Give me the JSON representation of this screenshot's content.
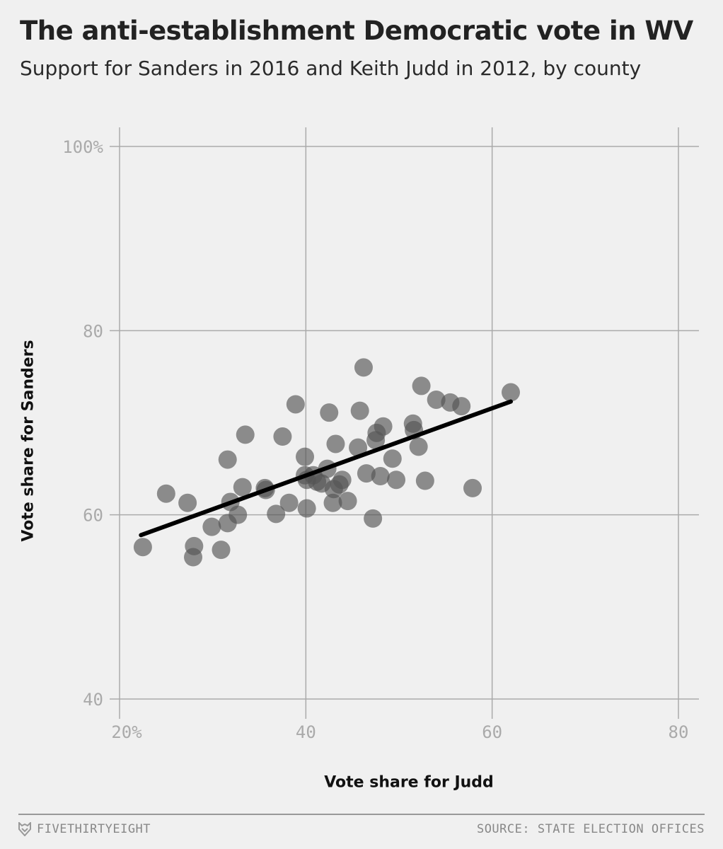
{
  "title": "The anti-establishment Democratic vote in WV",
  "subtitle": "Support for Sanders in 2016 and Keith Judd in 2012, by county",
  "footer": {
    "brand": "FIVETHIRTYEIGHT",
    "brand_icon": "fivethirtyeight-fox-icon",
    "source": "SOURCE: STATE ELECTION OFFICES"
  },
  "chart_data": {
    "type": "scatter",
    "xlabel": "Vote share for Judd",
    "ylabel": "Vote share for Sanders",
    "xlim": [
      20,
      80
    ],
    "ylim": [
      40,
      100
    ],
    "x_ticks": [
      20,
      40,
      60,
      80
    ],
    "x_tick_labels": [
      "20%",
      "40",
      "60",
      "80"
    ],
    "y_ticks": [
      40,
      60,
      80,
      100
    ],
    "y_tick_labels": [
      "40",
      "60",
      "80",
      "100%"
    ],
    "grid": true,
    "point_color": "#555555",
    "point_opacity": 0.65,
    "trend_line": {
      "x": [
        22.3,
        62.0
      ],
      "y": [
        57.8,
        72.3
      ],
      "color": "#000000"
    },
    "points": [
      {
        "x": 22.5,
        "y": 56.5
      },
      {
        "x": 25.0,
        "y": 62.3
      },
      {
        "x": 27.3,
        "y": 61.3
      },
      {
        "x": 28.0,
        "y": 56.6
      },
      {
        "x": 27.9,
        "y": 55.4
      },
      {
        "x": 29.9,
        "y": 58.7
      },
      {
        "x": 30.9,
        "y": 56.2
      },
      {
        "x": 31.6,
        "y": 59.1
      },
      {
        "x": 31.9,
        "y": 61.4
      },
      {
        "x": 31.6,
        "y": 66.0
      },
      {
        "x": 32.7,
        "y": 60.0
      },
      {
        "x": 33.2,
        "y": 63.0
      },
      {
        "x": 33.5,
        "y": 68.7
      },
      {
        "x": 35.6,
        "y": 62.9
      },
      {
        "x": 35.7,
        "y": 62.7
      },
      {
        "x": 36.8,
        "y": 60.1
      },
      {
        "x": 37.5,
        "y": 68.5
      },
      {
        "x": 38.2,
        "y": 61.3
      },
      {
        "x": 38.9,
        "y": 72.0
      },
      {
        "x": 39.9,
        "y": 66.3
      },
      {
        "x": 39.9,
        "y": 64.3
      },
      {
        "x": 40.1,
        "y": 63.8
      },
      {
        "x": 40.1,
        "y": 60.7
      },
      {
        "x": 40.8,
        "y": 64.3
      },
      {
        "x": 41.2,
        "y": 63.6
      },
      {
        "x": 41.7,
        "y": 63.4
      },
      {
        "x": 42.3,
        "y": 65.0
      },
      {
        "x": 42.5,
        "y": 71.1
      },
      {
        "x": 42.9,
        "y": 61.3
      },
      {
        "x": 43.0,
        "y": 62.8
      },
      {
        "x": 43.2,
        "y": 67.7
      },
      {
        "x": 43.6,
        "y": 63.3
      },
      {
        "x": 43.9,
        "y": 63.8
      },
      {
        "x": 44.5,
        "y": 61.5
      },
      {
        "x": 45.6,
        "y": 67.3
      },
      {
        "x": 45.8,
        "y": 71.3
      },
      {
        "x": 46.2,
        "y": 76.0
      },
      {
        "x": 46.5,
        "y": 64.5
      },
      {
        "x": 47.2,
        "y": 59.6
      },
      {
        "x": 47.5,
        "y": 68.1
      },
      {
        "x": 47.6,
        "y": 68.9
      },
      {
        "x": 48.0,
        "y": 64.2
      },
      {
        "x": 48.3,
        "y": 69.6
      },
      {
        "x": 49.3,
        "y": 66.1
      },
      {
        "x": 49.7,
        "y": 63.8
      },
      {
        "x": 51.5,
        "y": 69.9
      },
      {
        "x": 51.6,
        "y": 69.2
      },
      {
        "x": 52.1,
        "y": 67.4
      },
      {
        "x": 52.4,
        "y": 74.0
      },
      {
        "x": 52.8,
        "y": 63.7
      },
      {
        "x": 54.0,
        "y": 72.5
      },
      {
        "x": 55.5,
        "y": 72.2
      },
      {
        "x": 56.7,
        "y": 71.8
      },
      {
        "x": 57.9,
        "y": 62.9
      },
      {
        "x": 62.0,
        "y": 73.3
      }
    ]
  }
}
